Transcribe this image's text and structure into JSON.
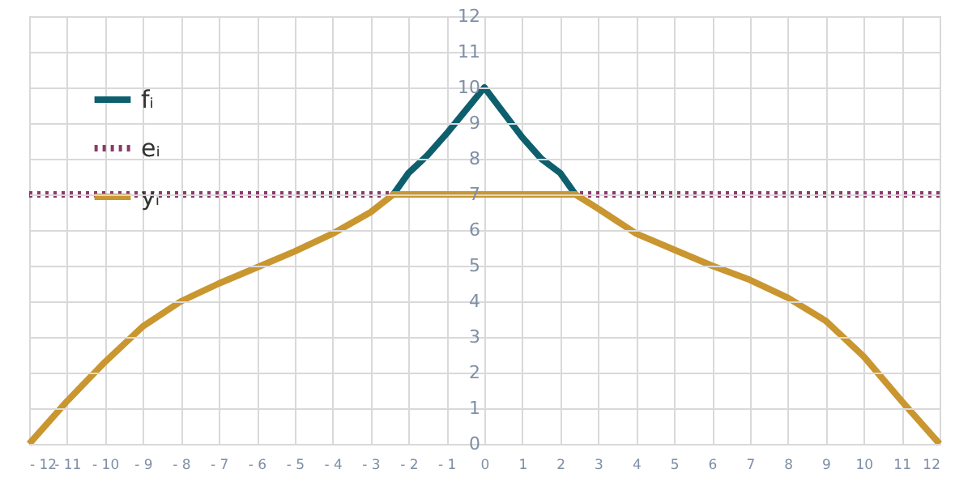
{
  "chart_data": {
    "type": "line",
    "xlim": [
      -12,
      12
    ],
    "ylim": [
      0,
      12
    ],
    "xticks": [
      {
        "value": -12,
        "label": "- 12"
      },
      {
        "value": -11,
        "label": "- 11"
      },
      {
        "value": -10,
        "label": "- 10"
      },
      {
        "value": -9,
        "label": "- 9"
      },
      {
        "value": -8,
        "label": "- 8"
      },
      {
        "value": -7,
        "label": "- 7"
      },
      {
        "value": -6,
        "label": "- 6"
      },
      {
        "value": -5,
        "label": "- 5"
      },
      {
        "value": -4,
        "label": "- 4"
      },
      {
        "value": -3,
        "label": "- 3"
      },
      {
        "value": -2,
        "label": "- 2"
      },
      {
        "value": -1,
        "label": "- 1"
      },
      0,
      1,
      2,
      3,
      4,
      5,
      6,
      7,
      8,
      9,
      10,
      11,
      12
    ],
    "yticks": [
      0,
      1,
      2,
      3,
      4,
      5,
      6,
      7,
      8,
      9,
      10,
      11,
      12
    ],
    "grid": true,
    "legend": "top left",
    "marker": "none",
    "series": [
      {
        "name": "fᵢ",
        "color": "#0e5f6e",
        "line_style": "solid",
        "x": [
          -2.4,
          -2,
          -1.5,
          -1,
          -0.5,
          0,
          0.5,
          1,
          1.5,
          2,
          2.4
        ],
        "values": [
          7,
          7.6,
          8.1,
          8.7,
          9.35,
          10,
          9.3,
          8.6,
          8.0,
          7.6,
          7
        ]
      },
      {
        "name": "eᵢ",
        "color": "#8b3a6b",
        "line_style": "dotted",
        "x": [
          -12,
          12
        ],
        "values": [
          7,
          7
        ]
      },
      {
        "name": "yᵢ",
        "color": "#c9962f",
        "line_style": "solid",
        "x": [
          -12,
          -11,
          -10,
          -9,
          -8,
          -7,
          -6,
          -5,
          -4,
          -3,
          -2.4,
          2.4,
          3,
          4,
          5,
          6,
          7,
          8,
          9,
          10,
          11,
          12
        ],
        "values": [
          0,
          1.2,
          2.3,
          3.3,
          4.0,
          4.5,
          4.95,
          5.4,
          5.9,
          6.5,
          7,
          7,
          6.6,
          5.9,
          5.45,
          5.0,
          4.6,
          4.1,
          3.45,
          2.45,
          1.2,
          0
        ]
      }
    ]
  }
}
